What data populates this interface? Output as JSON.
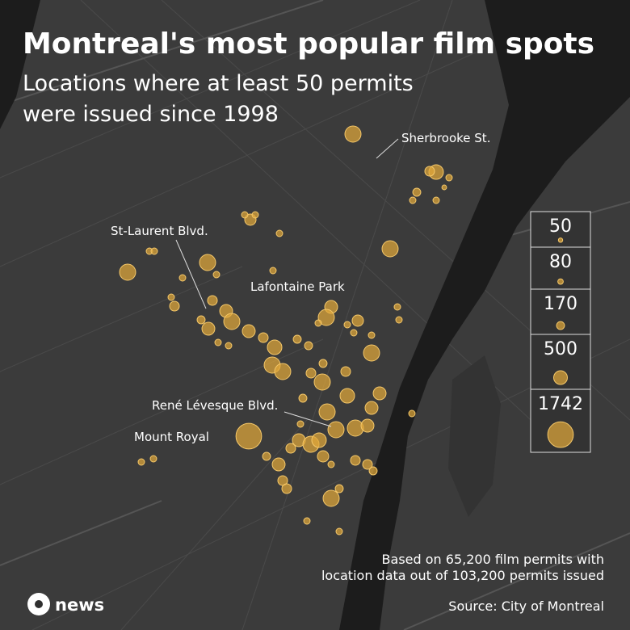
{
  "title": "Montreal's most popular film spots",
  "subtitle": [
    "Locations where at least 50 permits",
    "were issued since 1998"
  ],
  "annotations": [
    "Sherbrooke St.",
    "St-Laurent Blvd.",
    "Lafontaine Park",
    "René Lévesque Blvd.",
    "Mount Royal"
  ],
  "legend": [
    50,
    80,
    170,
    500,
    1742
  ],
  "locations": {
    "permits": [
      690,
      560,
      250,
      110,
      170,
      110,
      110,
      60,
      690,
      340,
      110,
      110,
      110,
      690,
      110,
      110,
      690,
      110,
      110,
      110,
      250,
      110,
      250,
      440,
      690,
      170,
      440,
      110,
      110,
      440,
      250,
      560,
      690,
      690,
      170,
      170,
      440,
      690,
      110,
      340,
      110,
      110,
      110,
      690,
      110,
      110,
      170,
      250,
      690,
      250,
      690,
      690,
      560,
      440,
      440,
      690,
      440,
      170,
      110,
      440,
      690,
      560,
      250,
      440,
      250,
      250,
      690,
      170,
      110,
      110,
      250,
      250,
      170,
      1742,
      110,
      110,
      110,
      110,
      170,
      340
    ]
  },
  "note": [
    "Based on 65,200 film permits with",
    "location data out of 103,200 permits issued"
  ],
  "source": "Source: City of Montreal",
  "logo": "news"
}
